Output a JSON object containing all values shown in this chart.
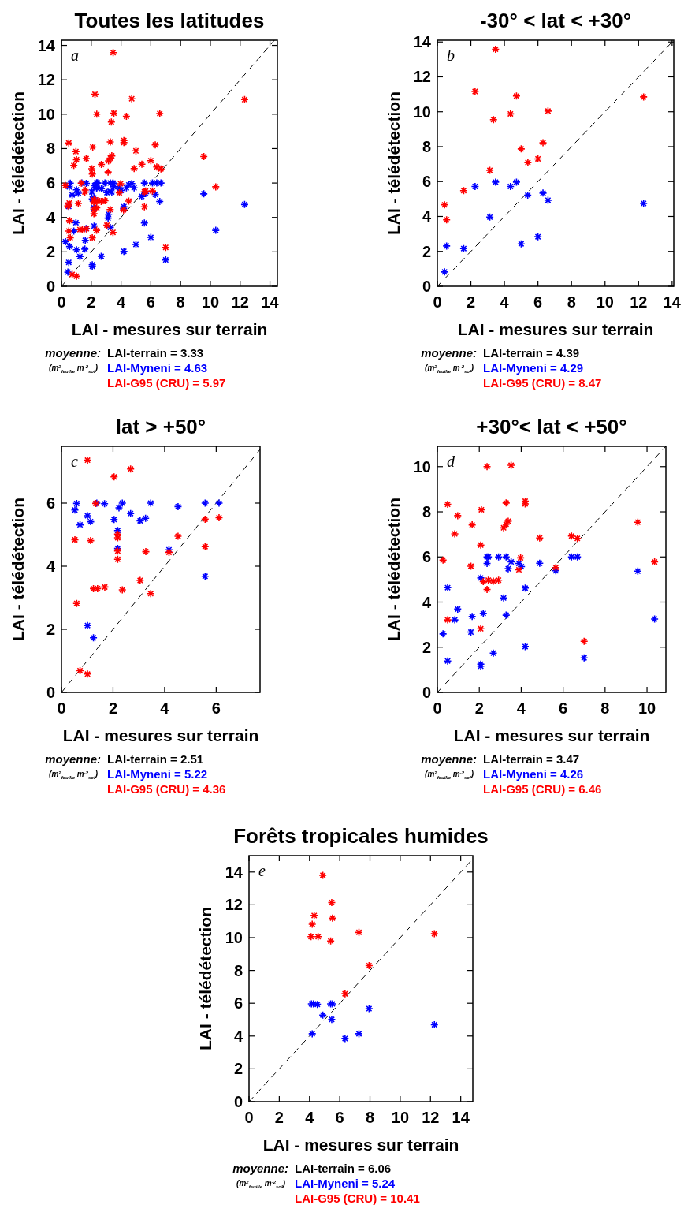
{
  "chart_data": [
    {
      "type": "scatter",
      "title": "Toutes les latitudes",
      "xlabel": "LAI - mesures sur terrain",
      "ylabel": "LAI - télédétection",
      "xlim": [
        0,
        14.5
      ],
      "ylim": [
        0,
        14.3
      ],
      "xticks": [
        0,
        2,
        4,
        6,
        8,
        10,
        12,
        14
      ],
      "yticks": [
        0,
        2,
        4,
        6,
        8,
        10,
        12,
        14
      ],
      "marker": "cross",
      "annotations": [
        "a",
        "moyenne:",
        "(m$^{2}$$_{feuille}$ m$^{-2}$$_{sol}$)",
        "LAI-terrain = 3.33",
        "LAI-Myneni = 4.63",
        "LAI-G95 (CRU) = 5.97"
      ],
      "series": [
        {
          "type": "line",
          "color": "#000000",
          "line_style": "dashed",
          "marker": "none",
          "x": [
            0,
            14.3
          ],
          "values": [
            0,
            14.3
          ]
        },
        {
          "color": "#0000ff",
          "x": [
            2.25,
            3.47,
            4.36,
            4.72,
            5.39,
            6.3,
            6.6,
            3.13,
            0.55,
            1.57,
            5.0,
            6.0,
            0.43,
            12.3,
            0.52,
            0.59,
            0.72,
            1.01,
            1.13,
            1.37,
            1.67,
            2.04,
            2.23,
            2.36,
            2.68,
            3.05,
            3.26,
            3.46,
            4.52,
            5.57,
            6.11,
            2.18,
            2.18,
            4.17,
            5.57,
            1.01,
            1.24,
            2.37,
            2.43,
            2.92,
            3.28,
            6.4,
            6.68,
            2.37,
            3.38,
            3.52,
            3.89,
            4.01,
            4.88,
            5.65,
            2.07,
            0.49,
            4.19,
            3.16,
            0.97,
            0.83,
            1.66,
            2.19,
            3.28,
            0.27,
            1.6,
            2.67,
            4.19,
            2.07,
            2.07,
            0.49,
            7.0,
            9.56,
            10.36
          ],
          "values": [
            5.72,
            5.97,
            5.72,
            5.97,
            5.22,
            5.34,
            4.93,
            3.96,
            2.31,
            2.16,
            2.43,
            2.84,
            0.82,
            4.75,
            5.78,
            5.99,
            5.31,
            5.6,
            5.41,
            6.0,
            5.98,
            5.48,
            5.85,
            6.0,
            5.67,
            5.44,
            5.52,
            6.0,
            5.89,
            6.0,
            6.0,
            5.13,
            4.56,
            4.52,
            3.68,
            2.12,
            1.73,
            6.0,
            6.0,
            6.0,
            6.0,
            6.0,
            6.0,
            5.71,
            5.48,
            5.78,
            5.71,
            5.57,
            5.72,
            5.39,
            5.07,
            4.64,
            4.62,
            4.18,
            3.69,
            3.21,
            3.36,
            3.5,
            3.42,
            2.59,
            2.67,
            1.74,
            2.03,
            1.25,
            1.16,
            1.39,
            1.53,
            5.37,
            3.25
          ]
        },
        {
          "color": "#ff0000",
          "x": [
            3.47,
            2.25,
            4.72,
            4.36,
            3.35,
            6.6,
            6.3,
            5.0,
            5.4,
            6.0,
            3.13,
            1.57,
            0.43,
            0.55,
            12.3,
            1.01,
            2.04,
            2.68,
            1.33,
            0.52,
            1.13,
            2.18,
            2.18,
            2.18,
            2.18,
            3.27,
            0.59,
            1.24,
            1.4,
            1.68,
            2.36,
            3.05,
            3.46,
            4.17,
            4.52,
            5.57,
            5.57,
            6.11,
            0.72,
            1.01,
            2.37,
            3.52,
            0.49,
            0.97,
            0.83,
            1.66,
            2.1,
            3.28,
            4.19,
            4.19,
            3.16,
            3.28,
            3.38,
            4.88,
            2.07,
            0.27,
            1.6,
            3.97,
            3.89,
            5.65,
            6.4,
            6.68,
            9.56,
            10.36,
            2.19,
            2.43,
            2.67,
            2.92,
            2.37,
            0.49,
            2.07,
            7.0
          ],
          "values": [
            13.58,
            11.16,
            10.9,
            9.88,
            9.55,
            10.04,
            8.22,
            7.87,
            7.09,
            7.3,
            6.64,
            5.48,
            4.67,
            3.81,
            10.85,
            7.36,
            6.83,
            7.08,
            5.99,
            4.84,
            4.81,
            5.02,
            4.9,
            4.48,
            4.22,
            4.46,
            2.82,
            3.29,
            3.29,
            3.34,
            3.25,
            3.55,
            3.13,
            4.44,
            4.95,
            5.49,
            4.62,
            5.54,
            0.69,
            0.58,
            10.0,
            10.06,
            8.33,
            7.83,
            7.02,
            7.42,
            8.09,
            8.39,
            8.47,
            8.35,
            7.29,
            7.45,
            7.58,
            6.84,
            6.52,
            5.86,
            5.59,
            5.96,
            5.43,
            5.53,
            6.93,
            6.82,
            7.54,
            5.78,
            4.91,
            4.97,
            4.93,
            4.97,
            4.56,
            3.21,
            2.82,
            2.26
          ]
        }
      ]
    },
    {
      "type": "scatter",
      "title": "-30° < lat < +30°",
      "xlabel": "LAI - mesures sur terrain",
      "ylabel": "LAI - télédétection",
      "xlim": [
        0,
        14.1
      ],
      "ylim": [
        0,
        14.1
      ],
      "xticks": [
        0,
        2,
        4,
        6,
        8,
        10,
        12,
        14
      ],
      "yticks": [
        0,
        2,
        4,
        6,
        8,
        10,
        12,
        14
      ],
      "marker": "cross",
      "annotations": [
        "b",
        "moyenne:",
        "(m$^{2}$$_{feuille}$ m$^{-2}$$_{sol}$)",
        "LAI-terrain = 4.39",
        "LAI-Myneni = 4.29",
        "LAI-G95 (CRU) = 8.47"
      ],
      "series": [
        {
          "type": "line",
          "color": "#000000",
          "line_style": "dashed",
          "marker": "none",
          "x": [
            0,
            14.1
          ],
          "values": [
            0,
            14.1
          ]
        },
        {
          "color": "#0000ff",
          "x": [
            2.25,
            3.47,
            4.36,
            4.72,
            5.39,
            6.3,
            6.6,
            3.13,
            0.55,
            1.57,
            5.0,
            6.0,
            0.43,
            12.3
          ],
          "values": [
            5.72,
            5.97,
            5.72,
            5.97,
            5.22,
            5.34,
            4.93,
            3.96,
            2.31,
            2.16,
            2.43,
            2.84,
            0.82,
            4.75
          ]
        },
        {
          "color": "#ff0000",
          "x": [
            3.47,
            2.25,
            4.72,
            4.36,
            3.35,
            6.6,
            6.3,
            5.0,
            5.4,
            6.0,
            3.13,
            1.57,
            0.43,
            0.55,
            12.3
          ],
          "values": [
            13.58,
            11.16,
            10.9,
            9.88,
            9.55,
            10.04,
            8.22,
            7.87,
            7.09,
            7.3,
            6.64,
            5.48,
            4.67,
            3.81,
            10.85
          ]
        }
      ]
    },
    {
      "type": "scatter",
      "title": "lat > +50°",
      "xlabel": "LAI - mesures sur terrain",
      "ylabel": "LAI - télédétection",
      "xlim": [
        0,
        7.7
      ],
      "ylim": [
        0,
        7.8
      ],
      "xticks": [
        0,
        2,
        4,
        6
      ],
      "yticks": [
        0,
        2,
        4,
        6
      ],
      "marker": "cross",
      "annotations": [
        "c",
        "moyenne:",
        "(m$^{2}$$_{feuille}$ m$^{-2}$$_{sol}$)",
        "LAI-terrain = 2.51",
        "LAI-Myneni = 5.22",
        "LAI-G95 (CRU) = 4.36"
      ],
      "series": [
        {
          "type": "line",
          "color": "#000000",
          "line_style": "dashed",
          "marker": "none",
          "x": [
            0,
            7.7
          ],
          "values": [
            0,
            7.7
          ]
        },
        {
          "color": "#0000ff",
          "x": [
            0.52,
            0.59,
            0.72,
            1.01,
            1.13,
            1.37,
            1.67,
            2.04,
            2.23,
            2.36,
            2.68,
            3.05,
            3.26,
            3.46,
            4.52,
            5.57,
            6.11,
            2.18,
            2.18,
            4.17,
            5.57,
            1.01,
            1.24
          ],
          "values": [
            5.78,
            5.99,
            5.31,
            5.6,
            5.41,
            6.0,
            5.98,
            5.48,
            5.85,
            6.0,
            5.67,
            5.44,
            5.52,
            6.0,
            5.89,
            6.0,
            6.0,
            5.13,
            4.56,
            4.52,
            3.68,
            2.12,
            1.73
          ]
        },
        {
          "color": "#ff0000",
          "x": [
            1.01,
            2.04,
            2.68,
            1.33,
            0.52,
            1.13,
            2.18,
            2.18,
            2.18,
            2.18,
            3.27,
            0.59,
            1.24,
            1.4,
            1.68,
            2.36,
            3.05,
            3.46,
            4.17,
            4.52,
            5.57,
            5.57,
            6.11,
            0.72,
            1.01
          ],
          "values": [
            7.36,
            6.83,
            7.08,
            5.99,
            4.84,
            4.81,
            5.02,
            4.9,
            4.48,
            4.22,
            4.46,
            2.82,
            3.29,
            3.29,
            3.34,
            3.25,
            3.55,
            3.13,
            4.44,
            4.95,
            5.49,
            4.62,
            5.54,
            0.69,
            0.58
          ]
        }
      ]
    },
    {
      "type": "scatter",
      "title": "+30°< lat < +50°",
      "xlabel": "LAI - mesures sur terrain",
      "ylabel": "LAI - télédétection",
      "xlim": [
        0,
        10.9
      ],
      "ylim": [
        0,
        10.9
      ],
      "xticks": [
        0,
        2,
        4,
        6,
        8,
        10
      ],
      "yticks": [
        0,
        2,
        4,
        6,
        8,
        10
      ],
      "marker": "cross",
      "annotations": [
        "d",
        "moyenne:",
        "(m$^{2}$$_{feuille}$ m$^{-2}$$_{sol}$)",
        "LAI-terrain = 3.47",
        "LAI-Myneni = 4.26",
        "LAI-G95 (CRU) = 6.46"
      ],
      "series": [
        {
          "type": "line",
          "color": "#000000",
          "line_style": "dashed",
          "marker": "none",
          "x": [
            0,
            10.9
          ],
          "values": [
            0,
            10.9
          ]
        },
        {
          "color": "#0000ff",
          "x": [
            2.37,
            2.43,
            2.92,
            3.28,
            6.4,
            6.68,
            2.37,
            3.38,
            3.52,
            3.89,
            4.01,
            4.88,
            5.65,
            2.07,
            0.49,
            4.19,
            3.16,
            0.97,
            0.83,
            1.66,
            2.19,
            3.28,
            0.27,
            1.6,
            2.67,
            4.19,
            2.07,
            2.07,
            0.49,
            7.0,
            9.56,
            10.36
          ],
          "values": [
            6.0,
            6.0,
            6.0,
            6.0,
            6.0,
            6.0,
            5.71,
            5.48,
            5.78,
            5.71,
            5.57,
            5.72,
            5.39,
            5.07,
            4.64,
            4.62,
            4.18,
            3.69,
            3.21,
            3.36,
            3.5,
            3.42,
            2.59,
            2.67,
            1.74,
            2.03,
            1.25,
            1.16,
            1.39,
            1.53,
            5.37,
            3.25
          ]
        },
        {
          "color": "#ff0000",
          "x": [
            2.37,
            3.52,
            0.49,
            0.97,
            0.83,
            1.66,
            2.1,
            3.28,
            4.19,
            4.19,
            3.16,
            3.28,
            3.38,
            4.88,
            2.07,
            0.27,
            1.6,
            3.97,
            3.89,
            5.65,
            6.4,
            6.68,
            9.56,
            10.36,
            2.19,
            2.43,
            2.67,
            2.92,
            2.37,
            0.49,
            2.07,
            7.0
          ],
          "values": [
            10.0,
            10.06,
            8.33,
            7.83,
            7.02,
            7.42,
            8.09,
            8.39,
            8.47,
            8.35,
            7.29,
            7.45,
            7.58,
            6.84,
            6.52,
            5.86,
            5.59,
            5.96,
            5.43,
            5.53,
            6.93,
            6.82,
            7.54,
            5.78,
            4.91,
            4.97,
            4.93,
            4.97,
            4.56,
            3.21,
            2.82,
            2.26
          ]
        }
      ]
    },
    {
      "type": "scatter",
      "title": "Forêts tropicales humides",
      "xlabel": "LAI - mesures sur terrain",
      "ylabel": "LAI - télédétection",
      "xlim": [
        0,
        14.8
      ],
      "ylim": [
        0,
        15
      ],
      "xticks": [
        0,
        2,
        4,
        6,
        8,
        10,
        12,
        14
      ],
      "yticks": [
        0,
        2,
        4,
        6,
        8,
        10,
        12,
        14
      ],
      "marker": "cross",
      "annotations": [
        "e",
        "moyenne:",
        "(m$^{2}$$_{feuille}$ m$^{-2}$$_{sol}$)",
        "LAI-terrain = 6.06",
        "LAI-Myneni = 5.24",
        "LAI-G95 (CRU) = 10.41"
      ],
      "series": [
        {
          "type": "line",
          "color": "#000000",
          "line_style": "dashed",
          "marker": "none",
          "x": [
            0,
            14.8
          ],
          "values": [
            0,
            14.8
          ]
        },
        {
          "color": "#0000ff",
          "x": [
            4.13,
            4.26,
            4.52,
            5.4,
            5.52,
            4.88,
            5.47,
            4.18,
            6.35,
            7.27,
            7.94,
            12.26
          ],
          "values": [
            5.96,
            5.96,
            5.93,
            5.96,
            5.96,
            5.28,
            5.01,
            4.14,
            3.85,
            4.14,
            5.67,
            4.69
          ]
        },
        {
          "color": "#ff0000",
          "x": [
            4.88,
            5.47,
            4.31,
            5.52,
            4.18,
            4.1,
            4.57,
            5.4,
            7.27,
            12.26,
            7.94,
            6.35
          ],
          "values": [
            13.8,
            12.14,
            11.35,
            11.19,
            10.82,
            10.06,
            10.06,
            9.79,
            10.32,
            10.24,
            8.29,
            6.58
          ]
        }
      ]
    }
  ]
}
